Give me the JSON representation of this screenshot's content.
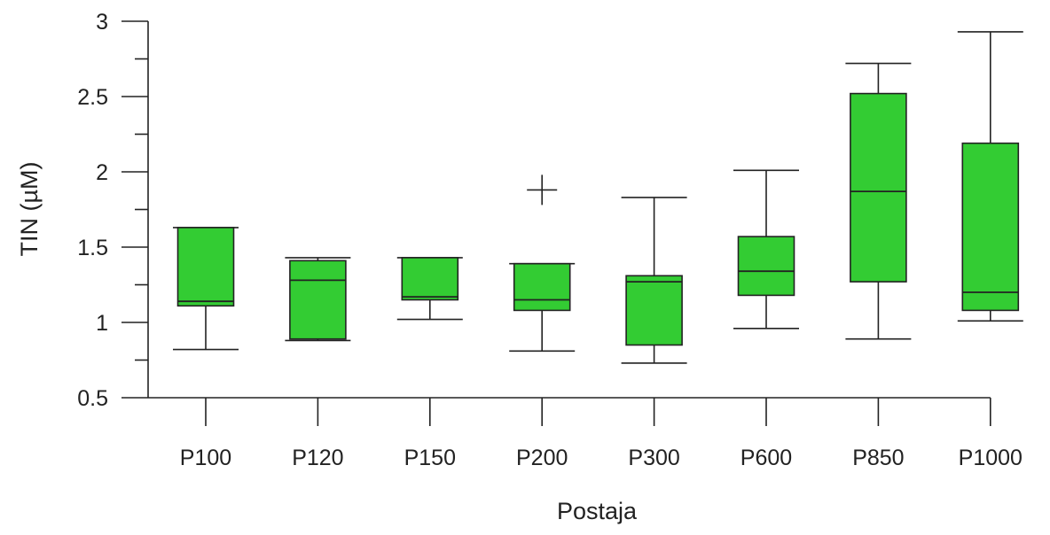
{
  "chart_data": {
    "type": "box",
    "title": "",
    "xlabel": "Postaja",
    "ylabel": "TIN (µM)",
    "ylim": [
      0.5,
      3
    ],
    "yticks": [
      0.5,
      1,
      1.5,
      2,
      2.5,
      3
    ],
    "ytick_labels": [
      "0.5",
      "1",
      "1.5",
      "2",
      "2.5",
      "3"
    ],
    "minor_ticks": true,
    "grid": false,
    "categories": [
      "P100",
      "P120",
      "P150",
      "P200",
      "P300",
      "P600",
      "P850",
      "P1000"
    ],
    "boxes": [
      {
        "category": "P100",
        "whisker_low": 0.82,
        "q1": 1.11,
        "median": 1.14,
        "q3": 1.63,
        "whisker_high": 1.63,
        "outliers": []
      },
      {
        "category": "P120",
        "whisker_low": 0.88,
        "q1": 0.89,
        "median": 1.28,
        "q3": 1.41,
        "whisker_high": 1.43,
        "outliers": []
      },
      {
        "category": "P150",
        "whisker_low": 1.02,
        "q1": 1.15,
        "median": 1.17,
        "q3": 1.43,
        "whisker_high": 1.43,
        "outliers": []
      },
      {
        "category": "P200",
        "whisker_low": 0.81,
        "q1": 1.08,
        "median": 1.15,
        "q3": 1.39,
        "whisker_high": 1.39,
        "outliers": [
          1.88
        ]
      },
      {
        "category": "P300",
        "whisker_low": 0.73,
        "q1": 0.85,
        "median": 1.27,
        "q3": 1.31,
        "whisker_high": 1.83,
        "outliers": []
      },
      {
        "category": "P600",
        "whisker_low": 0.96,
        "q1": 1.18,
        "median": 1.34,
        "q3": 1.57,
        "whisker_high": 2.01,
        "outliers": []
      },
      {
        "category": "P850",
        "whisker_low": 0.89,
        "q1": 1.27,
        "median": 1.87,
        "q3": 2.52,
        "whisker_high": 2.72,
        "outliers": []
      },
      {
        "category": "P1000",
        "whisker_low": 1.01,
        "q1": 1.08,
        "median": 1.2,
        "q3": 2.19,
        "whisker_high": 2.93,
        "outliers": []
      }
    ],
    "box_color": "#33cc33",
    "line_color": "#222222"
  }
}
